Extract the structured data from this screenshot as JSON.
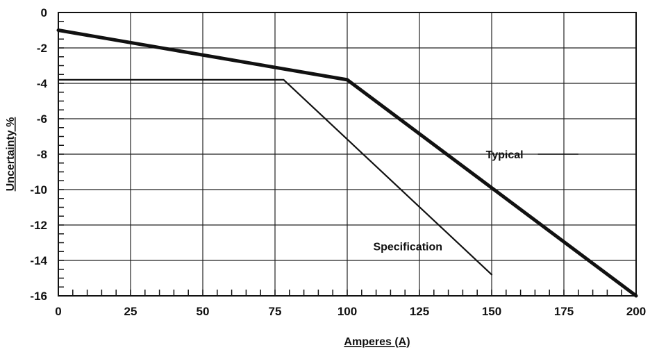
{
  "chart_data": {
    "type": "line",
    "xlabel": "Amperes (A)",
    "ylabel": "Uncertainty %",
    "xlim": [
      0,
      200
    ],
    "ylim": [
      -16,
      0
    ],
    "x_ticks": [
      0,
      25,
      50,
      75,
      100,
      125,
      150,
      175,
      200
    ],
    "y_ticks": [
      0,
      -2,
      -4,
      -6,
      -8,
      -10,
      -12,
      -14,
      -16
    ],
    "grid": true,
    "series": [
      {
        "name": "Typical",
        "x": [
          0,
          100,
          200
        ],
        "y": [
          -1.0,
          -3.8,
          -16.0
        ]
      },
      {
        "name": "Specification",
        "x": [
          0,
          78,
          150
        ],
        "y": [
          -3.8,
          -3.8,
          -14.8
        ]
      }
    ],
    "annotations": [
      {
        "text": "Typical",
        "series": 0
      },
      {
        "text": "Specification",
        "series": 1
      }
    ]
  }
}
